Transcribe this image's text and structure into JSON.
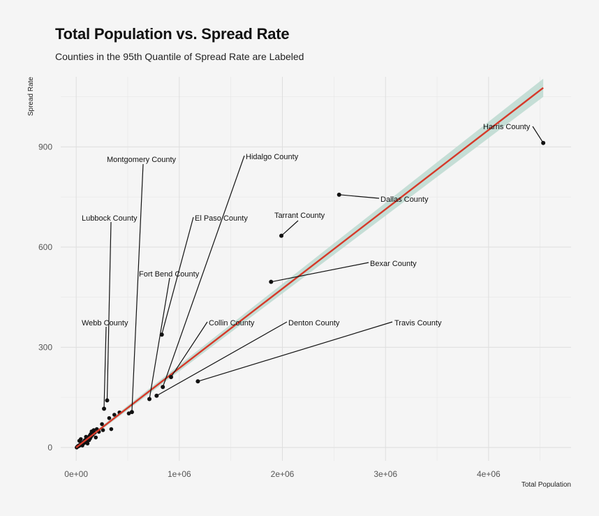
{
  "chart_data": {
    "type": "scatter",
    "title": "Total Population vs. Spread Rate",
    "subtitle": "Counties in the 95th Quantile of Spread Rate are Labeled",
    "xlabel": "Total Population",
    "ylabel": "Spread Rate",
    "xlim": [
      -150000,
      4800000
    ],
    "ylim": [
      -40,
      1110
    ],
    "x_ticks": [
      0,
      1000000,
      2000000,
      3000000,
      4000000
    ],
    "x_tick_labels": [
      "0e+00",
      "1e+06",
      "2e+06",
      "3e+06",
      "4e+06"
    ],
    "y_ticks": [
      0,
      300,
      600,
      900
    ],
    "y_tick_labels": [
      "0",
      "300",
      "600",
      "900"
    ],
    "grid": true,
    "trend_line": {
      "method": "linear",
      "color": "#d63a2a",
      "ribbon_color": "#bcd9d0",
      "x_start": 0,
      "y_start": 0,
      "x_end": 4530000,
      "y_end": 1077
    },
    "labeled_points": [
      {
        "name": "Harris County",
        "x": 4530000,
        "y": 912
      },
      {
        "name": "Dallas County",
        "x": 2550000,
        "y": 757
      },
      {
        "name": "Tarrant County",
        "x": 1990000,
        "y": 634
      },
      {
        "name": "Bexar County",
        "x": 1890000,
        "y": 496
      },
      {
        "name": "Travis County",
        "x": 1180000,
        "y": 198
      },
      {
        "name": "Hidalgo County",
        "x": 840000,
        "y": 181
      },
      {
        "name": "El Paso County",
        "x": 830000,
        "y": 338
      },
      {
        "name": "Collin County",
        "x": 920000,
        "y": 211
      },
      {
        "name": "Denton County",
        "x": 780000,
        "y": 155
      },
      {
        "name": "Fort Bend County",
        "x": 710000,
        "y": 145
      },
      {
        "name": "Montgomery County",
        "x": 540000,
        "y": 106
      },
      {
        "name": "Lubbock County",
        "x": 300000,
        "y": 141
      },
      {
        "name": "Webb County",
        "x": 270000,
        "y": 116
      }
    ],
    "other_points": [
      [
        5000,
        0
      ],
      [
        10000,
        2
      ],
      [
        15000,
        3
      ],
      [
        20000,
        5
      ],
      [
        25000,
        4
      ],
      [
        30000,
        6
      ],
      [
        35000,
        8
      ],
      [
        40000,
        7
      ],
      [
        45000,
        10
      ],
      [
        50000,
        9
      ],
      [
        55000,
        12
      ],
      [
        60000,
        14
      ],
      [
        65000,
        11
      ],
      [
        70000,
        16
      ],
      [
        75000,
        13
      ],
      [
        80000,
        18
      ],
      [
        85000,
        22
      ],
      [
        90000,
        15
      ],
      [
        95000,
        20
      ],
      [
        100000,
        25
      ],
      [
        105000,
        19
      ],
      [
        110000,
        28
      ],
      [
        115000,
        24
      ],
      [
        120000,
        30
      ],
      [
        125000,
        22
      ],
      [
        130000,
        35
      ],
      [
        135000,
        27
      ],
      [
        140000,
        40
      ],
      [
        145000,
        33
      ],
      [
        150000,
        48
      ],
      [
        160000,
        38
      ],
      [
        170000,
        52
      ],
      [
        180000,
        44
      ],
      [
        200000,
        55
      ],
      [
        220000,
        47
      ],
      [
        250000,
        70
      ],
      [
        260000,
        52
      ],
      [
        320000,
        88
      ],
      [
        340000,
        55
      ],
      [
        370000,
        98
      ],
      [
        420000,
        105
      ],
      [
        510000,
        102
      ],
      [
        30000,
        20
      ],
      [
        45000,
        25
      ],
      [
        60000,
        6
      ],
      [
        95000,
        32
      ],
      [
        110000,
        12
      ],
      [
        190000,
        30
      ]
    ]
  }
}
